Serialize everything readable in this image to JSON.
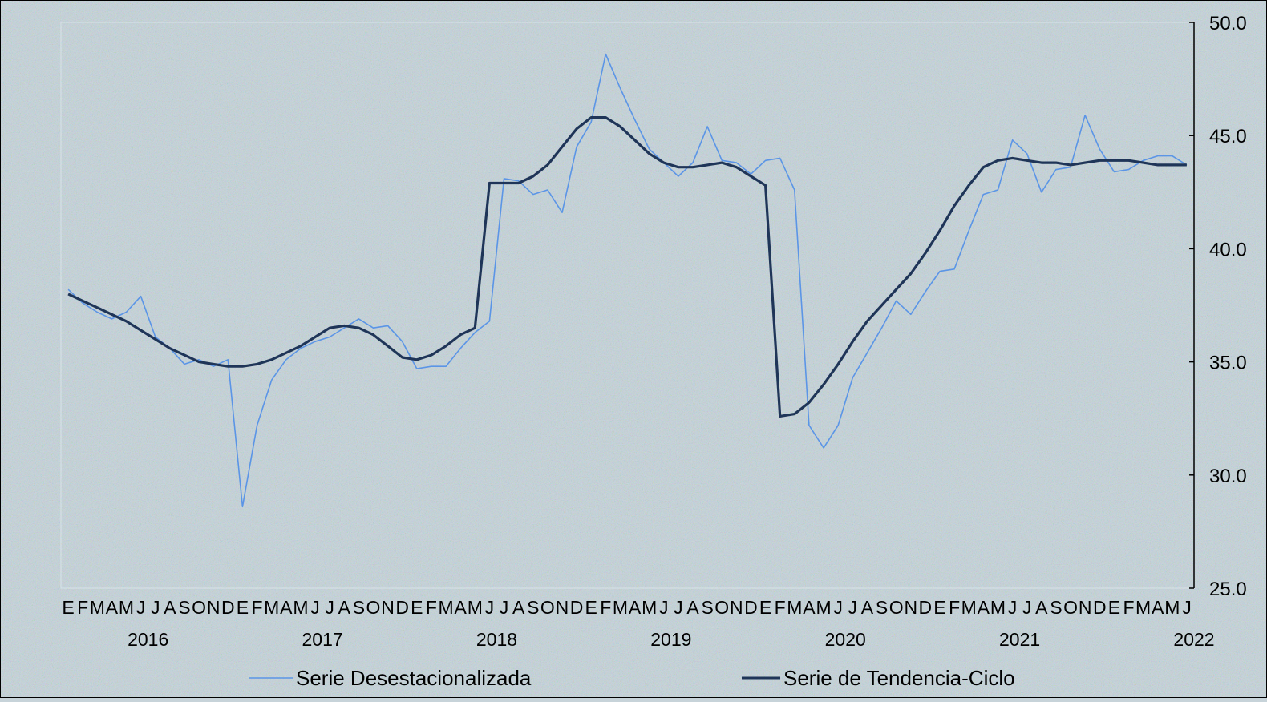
{
  "chart_data": {
    "type": "line",
    "y_axis": {
      "side": "right",
      "ylim": [
        25,
        50
      ],
      "ticks": [
        "25.0",
        "30.0",
        "35.0",
        "40.0",
        "45.0",
        "50.0"
      ]
    },
    "month_labels": [
      "E",
      "F",
      "M",
      "A",
      "M",
      "J",
      "J",
      "A",
      "S",
      "O",
      "N",
      "D"
    ],
    "years": [
      "2016",
      "2017",
      "2018",
      "2019",
      "2020",
      "2021",
      "2022"
    ],
    "months_total": 78,
    "legend": {
      "position": "bottom"
    },
    "series": [
      {
        "name": "Serie Desestacionalizada",
        "color": "#5b95e6",
        "values": [
          38.2,
          37.6,
          37.2,
          36.9,
          37.2,
          37.9,
          36.1,
          35.6,
          34.9,
          35.1,
          34.8,
          35.1,
          28.6,
          32.2,
          34.2,
          35.1,
          35.6,
          35.9,
          36.1,
          36.5,
          36.9,
          36.5,
          36.6,
          35.9,
          34.7,
          34.8,
          34.8,
          35.6,
          36.3,
          36.8,
          43.1,
          43.0,
          42.4,
          42.6,
          41.6,
          44.5,
          45.6,
          48.6,
          47.1,
          45.7,
          44.4,
          43.8,
          43.2,
          43.8,
          45.4,
          43.9,
          43.8,
          43.3,
          43.9,
          44.0,
          42.6,
          32.2,
          31.2,
          32.2,
          34.3,
          35.4,
          36.5,
          37.7,
          37.1,
          38.1,
          39.0,
          39.1,
          40.8,
          42.4,
          42.6,
          44.8,
          44.2,
          42.5,
          43.5,
          43.6,
          45.9,
          44.4,
          43.4,
          43.5,
          43.9,
          44.1,
          44.1,
          43.7
        ]
      },
      {
        "name": "Serie de Tendencia-Ciclo",
        "color": "#1f3558",
        "values": [
          38.0,
          37.7,
          37.4,
          37.1,
          36.8,
          36.4,
          36.0,
          35.6,
          35.3,
          35.0,
          34.9,
          34.8,
          34.8,
          34.9,
          35.1,
          35.4,
          35.7,
          36.1,
          36.5,
          36.6,
          36.5,
          36.2,
          35.7,
          35.2,
          35.1,
          35.3,
          35.7,
          36.2,
          36.5,
          42.9,
          42.9,
          42.9,
          43.2,
          43.7,
          44.5,
          45.3,
          45.8,
          45.8,
          45.4,
          44.8,
          44.2,
          43.8,
          43.6,
          43.6,
          43.7,
          43.8,
          43.6,
          43.2,
          42.8,
          32.6,
          32.7,
          33.2,
          34.0,
          34.9,
          35.9,
          36.8,
          37.5,
          38.2,
          38.9,
          39.8,
          40.8,
          41.9,
          42.8,
          43.6,
          43.9,
          44.0,
          43.9,
          43.8,
          43.8,
          43.7,
          43.8,
          43.9,
          43.9,
          43.9,
          43.8,
          43.7,
          43.7,
          43.7
        ]
      }
    ]
  }
}
